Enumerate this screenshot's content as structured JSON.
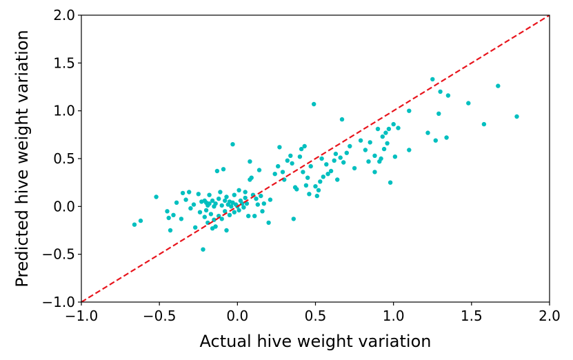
{
  "chart_data": {
    "type": "scatter",
    "title": "",
    "xlabel": "Actual hive weight variation",
    "ylabel": "Predicted hive weight variation",
    "xlim": [
      -1.0,
      2.0
    ],
    "ylim": [
      -1.0,
      2.0
    ],
    "xticks": [
      -1.0,
      -0.5,
      0.0,
      0.5,
      1.0,
      1.5,
      2.0
    ],
    "yticks": [
      -1.0,
      -0.5,
      0.0,
      0.5,
      1.0,
      1.5,
      2.0
    ],
    "xtick_labels": [
      "−1.0",
      "−0.5",
      "0.0",
      "0.5",
      "1.0",
      "1.5",
      "2.0"
    ],
    "ytick_labels": [
      "−1.0",
      "−0.5",
      "0.0",
      "0.5",
      "1.0",
      "1.5",
      "2.0"
    ],
    "grid": false,
    "point_color": "#00BFBF",
    "reference_line": {
      "style": "dashed",
      "color": "#E8141C",
      "from": [
        -1.0,
        -1.0
      ],
      "to": [
        2.0,
        2.0
      ]
    },
    "points": [
      [
        -0.66,
        -0.19
      ],
      [
        -0.62,
        -0.15
      ],
      [
        -0.52,
        0.1
      ],
      [
        -0.45,
        -0.05
      ],
      [
        -0.44,
        -0.12
      ],
      [
        -0.43,
        -0.25
      ],
      [
        -0.41,
        -0.09
      ],
      [
        -0.39,
        0.04
      ],
      [
        -0.36,
        -0.13
      ],
      [
        -0.35,
        0.14
      ],
      [
        -0.33,
        0.07
      ],
      [
        -0.31,
        0.15
      ],
      [
        -0.3,
        -0.02
      ],
      [
        -0.28,
        0.02
      ],
      [
        -0.27,
        -0.22
      ],
      [
        -0.25,
        0.13
      ],
      [
        -0.24,
        -0.06
      ],
      [
        -0.23,
        0.05
      ],
      [
        -0.22,
        -0.45
      ],
      [
        -0.21,
        0.06
      ],
      [
        -0.21,
        -0.11
      ],
      [
        -0.2,
        -0.04
      ],
      [
        -0.2,
        0.04
      ],
      [
        -0.19,
        0.01
      ],
      [
        -0.19,
        -0.17
      ],
      [
        -0.18,
        0.03
      ],
      [
        -0.18,
        0.12
      ],
      [
        -0.17,
        -0.08
      ],
      [
        -0.16,
        0.06
      ],
      [
        -0.16,
        -0.23
      ],
      [
        -0.15,
        0.0
      ],
      [
        -0.15,
        -0.14
      ],
      [
        -0.14,
        0.03
      ],
      [
        -0.14,
        -0.21
      ],
      [
        -0.13,
        0.37
      ],
      [
        -0.12,
        0.08
      ],
      [
        -0.12,
        -0.1
      ],
      [
        -0.11,
        0.15
      ],
      [
        -0.1,
        0.01
      ],
      [
        -0.1,
        -0.13
      ],
      [
        -0.09,
        0.39
      ],
      [
        -0.08,
        0.06
      ],
      [
        -0.08,
        -0.05
      ],
      [
        -0.07,
        0.1
      ],
      [
        -0.07,
        -0.25
      ],
      [
        -0.06,
        0.02
      ],
      [
        -0.05,
        0.05
      ],
      [
        -0.05,
        -0.09
      ],
      [
        -0.04,
        0.0
      ],
      [
        -0.03,
        0.04
      ],
      [
        -0.03,
        0.65
      ],
      [
        -0.02,
        0.12
      ],
      [
        -0.02,
        -0.06
      ],
      [
        -0.01,
        0.02
      ],
      [
        0.0,
        0.0
      ],
      [
        0.01,
        -0.04
      ],
      [
        0.01,
        0.17
      ],
      [
        0.02,
        0.06
      ],
      [
        0.03,
        0.03
      ],
      [
        0.04,
        -0.01
      ],
      [
        0.05,
        0.09
      ],
      [
        0.05,
        0.15
      ],
      [
        0.06,
        0.03
      ],
      [
        0.07,
        -0.1
      ],
      [
        0.08,
        0.47
      ],
      [
        0.08,
        0.28
      ],
      [
        0.09,
        0.3
      ],
      [
        0.1,
        0.12
      ],
      [
        0.11,
        -0.1
      ],
      [
        0.12,
        0.08
      ],
      [
        0.13,
        0.02
      ],
      [
        0.14,
        0.38
      ],
      [
        0.15,
        0.11
      ],
      [
        0.16,
        -0.05
      ],
      [
        0.17,
        0.03
      ],
      [
        0.2,
        -0.17
      ],
      [
        0.21,
        0.07
      ],
      [
        0.24,
        0.34
      ],
      [
        0.26,
        0.42
      ],
      [
        0.27,
        0.62
      ],
      [
        0.29,
        0.36
      ],
      [
        0.3,
        0.28
      ],
      [
        0.32,
        0.48
      ],
      [
        0.34,
        0.53
      ],
      [
        0.35,
        0.45
      ],
      [
        0.36,
        -0.13
      ],
      [
        0.37,
        0.2
      ],
      [
        0.38,
        0.18
      ],
      [
        0.4,
        0.52
      ],
      [
        0.41,
        0.6
      ],
      [
        0.42,
        0.36
      ],
      [
        0.43,
        0.63
      ],
      [
        0.44,
        0.22
      ],
      [
        0.45,
        0.3
      ],
      [
        0.46,
        0.13
      ],
      [
        0.47,
        0.42
      ],
      [
        0.49,
        1.07
      ],
      [
        0.5,
        0.21
      ],
      [
        0.51,
        0.11
      ],
      [
        0.52,
        0.17
      ],
      [
        0.53,
        0.26
      ],
      [
        0.54,
        0.5
      ],
      [
        0.55,
        0.31
      ],
      [
        0.57,
        0.44
      ],
      [
        0.58,
        0.34
      ],
      [
        0.6,
        0.37
      ],
      [
        0.62,
        0.48
      ],
      [
        0.63,
        0.55
      ],
      [
        0.64,
        0.28
      ],
      [
        0.66,
        0.51
      ],
      [
        0.67,
        0.91
      ],
      [
        0.68,
        0.46
      ],
      [
        0.7,
        0.56
      ],
      [
        0.72,
        0.63
      ],
      [
        0.75,
        0.4
      ],
      [
        0.79,
        0.69
      ],
      [
        0.82,
        0.59
      ],
      [
        0.84,
        0.47
      ],
      [
        0.85,
        0.67
      ],
      [
        0.88,
        0.53
      ],
      [
        0.88,
        0.36
      ],
      [
        0.9,
        0.81
      ],
      [
        0.91,
        0.47
      ],
      [
        0.92,
        0.5
      ],
      [
        0.93,
        0.73
      ],
      [
        0.94,
        0.6
      ],
      [
        0.95,
        0.77
      ],
      [
        0.96,
        0.66
      ],
      [
        0.97,
        0.81
      ],
      [
        0.98,
        0.25
      ],
      [
        1.0,
        0.86
      ],
      [
        1.01,
        0.52
      ],
      [
        1.03,
        0.82
      ],
      [
        1.1,
        1.0
      ],
      [
        1.1,
        0.59
      ],
      [
        1.22,
        0.77
      ],
      [
        1.25,
        1.33
      ],
      [
        1.27,
        0.69
      ],
      [
        1.29,
        0.97
      ],
      [
        1.3,
        1.2
      ],
      [
        1.34,
        0.72
      ],
      [
        1.35,
        1.16
      ],
      [
        1.48,
        1.08
      ],
      [
        1.58,
        0.86
      ],
      [
        1.67,
        1.26
      ],
      [
        1.79,
        0.94
      ]
    ]
  }
}
